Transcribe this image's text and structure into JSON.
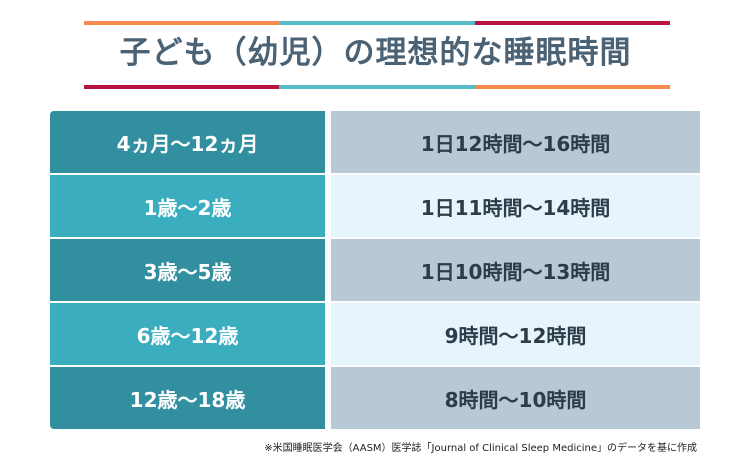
{
  "title": "子ども（幼児）の理想的な睡眠時間",
  "colors": {
    "orange": "#fb8a4e",
    "teal": "#57bcc8",
    "crimson": "#b8123f"
  },
  "rows": [
    {
      "age": "4ヵ月〜12ヵ月",
      "sleep": "1日12時間〜16時間"
    },
    {
      "age": "1歳〜2歳",
      "sleep": "1日11時間〜14時間"
    },
    {
      "age": "3歳〜5歳",
      "sleep": "1日10時間〜13時間"
    },
    {
      "age": "6歳〜12歳",
      "sleep": "9時間〜12時間"
    },
    {
      "age": "12歳〜18歳",
      "sleep": "8時間〜10時間"
    }
  ],
  "note": "※米国睡眠医学会（AASM）医学誌「Journal of Clinical Sleep Medicine」のデータを基に作成"
}
